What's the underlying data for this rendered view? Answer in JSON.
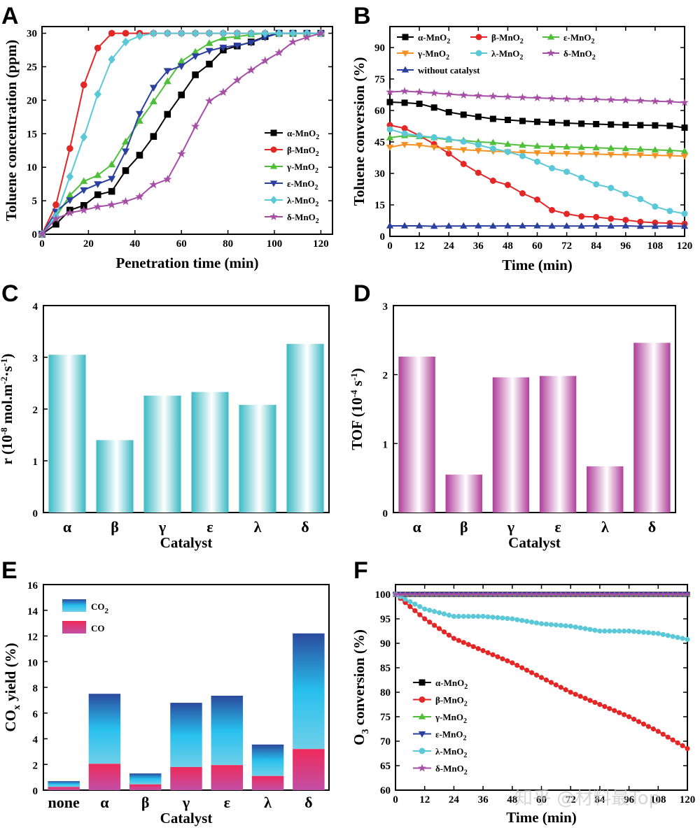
{
  "watermark": "知乎 @材料最Top",
  "chart_data": [
    {
      "panel": "A",
      "type": "line",
      "xlabel": "Penetration time (min)",
      "ylabel": "Toluene concentration (ppm)",
      "xlim": [
        0,
        125
      ],
      "ylim": [
        0,
        31
      ],
      "xticks": [
        0,
        20,
        40,
        60,
        80,
        100,
        120
      ],
      "yticks": [
        0,
        5,
        10,
        15,
        20,
        25,
        30
      ],
      "legend_position": "center-right",
      "series": [
        {
          "name": "α-MnO",
          "sub": "2",
          "color": "#000000",
          "marker": "square",
          "x": [
            0,
            6,
            12,
            18,
            24,
            30,
            36,
            42,
            48,
            54,
            60,
            66,
            72,
            78,
            84,
            90,
            96,
            102,
            108,
            114,
            120
          ],
          "y": [
            0,
            1.5,
            3.6,
            4.3,
            5.9,
            6.4,
            9.5,
            11.8,
            14.6,
            17.9,
            20.8,
            23.8,
            25.4,
            27.5,
            28.1,
            28.7,
            29.5,
            30,
            30,
            30,
            30
          ]
        },
        {
          "name": "β-MnO",
          "sub": "2",
          "color": "#e32626",
          "marker": "circle",
          "x": [
            0,
            6,
            12,
            18,
            24,
            30,
            36,
            42,
            48,
            54,
            60,
            66,
            72,
            78,
            84,
            90,
            96,
            102,
            108,
            114,
            120
          ],
          "y": [
            0,
            4.4,
            12.8,
            22.3,
            27.8,
            30,
            30,
            30,
            30,
            30,
            30,
            30,
            30,
            30,
            30,
            30,
            30,
            30,
            30,
            30,
            30
          ]
        },
        {
          "name": "γ-MnO",
          "sub": "2",
          "color": "#4fbf3a",
          "marker": "triangle-up",
          "x": [
            0,
            6,
            12,
            18,
            24,
            30,
            36,
            42,
            48,
            54,
            60,
            66,
            72,
            78,
            84,
            90,
            96,
            102,
            108,
            114,
            120
          ],
          "y": [
            0,
            2.6,
            5.8,
            7.9,
            8.8,
            10.4,
            13.8,
            16.9,
            19.8,
            22.8,
            25.8,
            27.2,
            28.5,
            29.3,
            29.5,
            29.8,
            30,
            30,
            30,
            30,
            30
          ]
        },
        {
          "name": "ε-MnO",
          "sub": "2",
          "color": "#2a3f9e",
          "marker": "triangle-down",
          "x": [
            0,
            6,
            12,
            18,
            24,
            30,
            36,
            42,
            48,
            54,
            60,
            66,
            72,
            78,
            84,
            90,
            96,
            102,
            108,
            114,
            120
          ],
          "y": [
            0,
            3.4,
            5.1,
            6.6,
            7.5,
            8.3,
            12.4,
            18,
            21.9,
            24.4,
            25.1,
            26.6,
            27.4,
            27.9,
            28.2,
            28.6,
            29.4,
            30,
            30,
            30,
            30
          ]
        },
        {
          "name": "λ-MnO",
          "sub": "2",
          "color": "#5bc8d8",
          "marker": "diamond",
          "x": [
            0,
            6,
            12,
            18,
            24,
            30,
            36,
            42,
            48,
            54,
            60,
            66,
            72,
            78,
            84,
            90,
            96,
            102,
            108,
            114,
            120
          ],
          "y": [
            0,
            2.7,
            8.6,
            14.5,
            20.9,
            26.1,
            28.7,
            29.6,
            30,
            30,
            30,
            30,
            30,
            30,
            30,
            30,
            30,
            30,
            30,
            30,
            30
          ]
        },
        {
          "name": "δ-MnO",
          "sub": "2",
          "color": "#a64fa6",
          "marker": "star",
          "x": [
            0,
            6,
            12,
            18,
            24,
            30,
            36,
            42,
            48,
            54,
            60,
            66,
            72,
            78,
            84,
            90,
            96,
            102,
            108,
            114,
            120
          ],
          "y": [
            0,
            2.3,
            3.2,
            3.6,
            4.1,
            4.4,
            4.9,
            5.6,
            7.4,
            8.2,
            12,
            16.1,
            19.9,
            21.2,
            23,
            24.5,
            25.9,
            27.1,
            28.7,
            29.4,
            30
          ]
        }
      ]
    },
    {
      "panel": "B",
      "type": "line",
      "xlabel": "Time (min)",
      "ylabel": "Toluene conversion (%)",
      "xlim": [
        0,
        120
      ],
      "ylim": [
        0,
        100
      ],
      "xticks": [
        0,
        12,
        24,
        36,
        48,
        60,
        72,
        84,
        96,
        108,
        120
      ],
      "yticks": [
        0,
        15,
        30,
        45,
        60,
        75,
        90
      ],
      "legend_position": "top",
      "series": [
        {
          "name": "α-MnO",
          "sub": "2",
          "color": "#000000",
          "marker": "square",
          "x": [
            0,
            6,
            12,
            18,
            24,
            30,
            36,
            42,
            48,
            54,
            60,
            66,
            72,
            78,
            84,
            90,
            96,
            102,
            108,
            114,
            120
          ],
          "y": [
            64,
            63.7,
            63.2,
            61.4,
            59.2,
            58,
            57,
            56,
            55.5,
            55,
            54.6,
            54.3,
            54,
            53.7,
            53.5,
            53.3,
            53.1,
            53,
            52.9,
            52.7,
            51.8
          ]
        },
        {
          "name": "β-MnO",
          "sub": "2",
          "color": "#e32626",
          "marker": "circle",
          "x": [
            0,
            6,
            12,
            18,
            24,
            30,
            36,
            42,
            48,
            54,
            60,
            66,
            72,
            78,
            84,
            90,
            96,
            102,
            108,
            114,
            120
          ],
          "y": [
            53,
            51.5,
            48,
            44,
            39.5,
            34.5,
            30.3,
            26.5,
            24.5,
            20.5,
            17.5,
            12.5,
            10.7,
            9.5,
            9.2,
            8.4,
            7.8,
            6.9,
            6.5,
            6.3,
            6
          ]
        },
        {
          "name": "ε-MnO",
          "sub": "2",
          "color": "#4fbf3a",
          "marker": "triangle-up",
          "x": [
            0,
            6,
            12,
            18,
            24,
            30,
            36,
            42,
            48,
            54,
            60,
            66,
            72,
            78,
            84,
            90,
            96,
            102,
            108,
            114,
            120
          ],
          "y": [
            47,
            48,
            47.5,
            47,
            46,
            45.7,
            45,
            44.7,
            43.9,
            43.4,
            43,
            42.8,
            42.6,
            42.4,
            42.2,
            42,
            41.8,
            41.5,
            41.2,
            41,
            40.6
          ]
        },
        {
          "name": "γ-MnO",
          "sub": "2",
          "color": "#f59023",
          "marker": "triangle-down",
          "x": [
            0,
            6,
            12,
            18,
            24,
            30,
            36,
            42,
            48,
            54,
            60,
            66,
            72,
            78,
            84,
            90,
            96,
            102,
            108,
            114,
            120
          ],
          "y": [
            42.5,
            43.8,
            43.5,
            42.5,
            41.8,
            41.3,
            40.9,
            40.6,
            40.3,
            40,
            39.8,
            39.6,
            39.5,
            39.3,
            39.2,
            39,
            38.9,
            38.8,
            38.6,
            38.5,
            38.2
          ]
        },
        {
          "name": "λ-MnO",
          "sub": "2",
          "color": "#5bc8d8",
          "marker": "circle",
          "x": [
            0,
            6,
            12,
            18,
            24,
            30,
            36,
            42,
            48,
            54,
            60,
            66,
            72,
            78,
            84,
            90,
            96,
            102,
            108,
            114,
            120
          ],
          "y": [
            51,
            49,
            47.9,
            47.2,
            46.4,
            45.2,
            43.6,
            41.8,
            40.3,
            38.3,
            35.6,
            32.5,
            30.8,
            27.9,
            24.8,
            23.1,
            20.2,
            17.8,
            14.2,
            12.1,
            10.8
          ]
        },
        {
          "name": "δ-MnO",
          "sub": "2",
          "color": "#a64fa6",
          "marker": "star",
          "x": [
            0,
            6,
            12,
            18,
            24,
            30,
            36,
            42,
            48,
            54,
            60,
            66,
            72,
            78,
            84,
            90,
            96,
            102,
            108,
            114,
            120
          ],
          "y": [
            68.8,
            69.2,
            68.8,
            68.3,
            67.8,
            67.3,
            67,
            66.8,
            66.5,
            66.2,
            66,
            65.7,
            65.5,
            65.4,
            65.3,
            65.1,
            64.9,
            64.7,
            64.4,
            64.2,
            63.8
          ]
        },
        {
          "name": "without catalyst",
          "sub": "",
          "color": "#2a3f9e",
          "marker": "triangle-up",
          "x": [
            0,
            6,
            12,
            18,
            24,
            30,
            36,
            42,
            48,
            54,
            60,
            66,
            72,
            78,
            84,
            90,
            96,
            102,
            108,
            114,
            120
          ],
          "y": [
            5,
            5,
            5,
            4.8,
            4.9,
            4.9,
            5,
            4.9,
            5,
            5,
            5,
            4.9,
            4.9,
            4.9,
            5,
            4.9,
            5,
            4.8,
            4.8,
            4.9,
            4.8
          ]
        }
      ]
    },
    {
      "panel": "C",
      "type": "bar",
      "xlabel": "Catalyst",
      "ylabel_pieces": [
        "r (10",
        "-8",
        " mol.m",
        "-2",
        "·s",
        "-1",
        ")"
      ],
      "ylim": [
        0,
        4
      ],
      "yticks": [
        0,
        1,
        2,
        3,
        4
      ],
      "categories": [
        "α",
        "β",
        "γ",
        "ε",
        "λ",
        "δ"
      ],
      "values": [
        3.05,
        1.4,
        2.26,
        2.33,
        2.08,
        3.26
      ],
      "bar_color": "#3cb9c3"
    },
    {
      "panel": "D",
      "type": "bar",
      "xlabel": "Catalyst",
      "ylabel_pieces": [
        "TOF (10",
        "-4",
        " s",
        "-1",
        ")"
      ],
      "ylim": [
        0,
        3
      ],
      "yticks": [
        0,
        1,
        2,
        3
      ],
      "categories": [
        "α",
        "β",
        "γ",
        "ε",
        "λ",
        "δ"
      ],
      "values": [
        2.26,
        0.55,
        1.96,
        1.98,
        0.67,
        2.46
      ],
      "bar_color": "#b03e9a"
    },
    {
      "panel": "E",
      "type": "bar",
      "stacked": true,
      "xlabel": "Catalyst",
      "ylabel_pieces": [
        "CO",
        "x",
        " yield (%)"
      ],
      "ylim": [
        0,
        16
      ],
      "yticks": [
        0,
        2,
        4,
        6,
        8,
        10,
        12,
        14,
        16
      ],
      "categories": [
        "none",
        "α",
        "β",
        "γ",
        "ε",
        "λ",
        "δ"
      ],
      "legend_position": "top-left",
      "series": [
        {
          "name": "CO",
          "sub": "",
          "values": [
            0.25,
            2.05,
            0.45,
            1.8,
            1.95,
            1.1,
            3.2
          ]
        },
        {
          "name": "CO",
          "sub": "2",
          "values": [
            0.45,
            5.45,
            0.85,
            5.0,
            5.4,
            2.45,
            9.0
          ]
        }
      ]
    },
    {
      "panel": "F",
      "type": "line",
      "xlabel": "Time (min)",
      "ylabel_pieces": [
        "O",
        "3",
        " conversion (%)"
      ],
      "xlim": [
        0,
        120
      ],
      "ylim": [
        60,
        102
      ],
      "xticks": [
        0,
        12,
        24,
        36,
        48,
        60,
        72,
        84,
        96,
        108,
        120
      ],
      "yticks": [
        60,
        65,
        70,
        75,
        80,
        85,
        90,
        95,
        100
      ],
      "legend_position": "bottom-left",
      "series": [
        {
          "name": "α-MnO",
          "sub": "2",
          "color": "#000000",
          "marker": "square",
          "x": [
            0,
            120
          ],
          "y": [
            100,
            100
          ]
        },
        {
          "name": "β-MnO",
          "sub": "2",
          "color": "#e32626",
          "marker": "circle",
          "x": [
            0,
            12,
            24,
            36,
            48,
            60,
            72,
            84,
            96,
            108,
            120
          ],
          "y": [
            100,
            95,
            91,
            88.5,
            86,
            83,
            80,
            77.5,
            75,
            72,
            68.5
          ]
        },
        {
          "name": "γ-MnO",
          "sub": "2",
          "color": "#4fbf3a",
          "marker": "triangle-up",
          "x": [
            0,
            120
          ],
          "y": [
            100,
            100
          ]
        },
        {
          "name": "ε-MnO",
          "sub": "2",
          "color": "#2a3f9e",
          "marker": "triangle-down",
          "x": [
            0,
            120
          ],
          "y": [
            100,
            100
          ]
        },
        {
          "name": "λ-MnO",
          "sub": "2",
          "color": "#5bc8d8",
          "marker": "circle",
          "x": [
            0,
            12,
            24,
            36,
            48,
            60,
            72,
            84,
            96,
            108,
            120
          ],
          "y": [
            100,
            97,
            95.5,
            95.5,
            95,
            94,
            93.5,
            92.5,
            92.5,
            92,
            90.8
          ]
        },
        {
          "name": "δ-MnO",
          "sub": "2",
          "color": "#a64fa6",
          "marker": "star",
          "x": [
            0,
            120
          ],
          "y": [
            100,
            100
          ]
        }
      ]
    }
  ]
}
